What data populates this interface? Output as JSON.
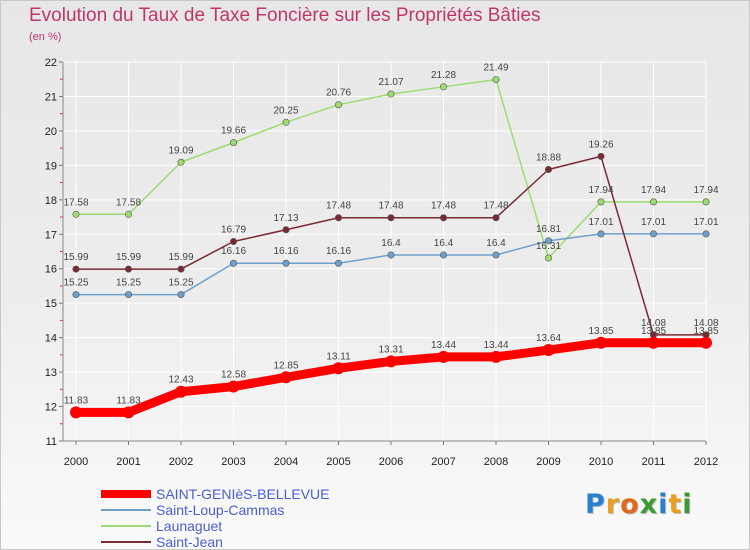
{
  "chart_data": {
    "type": "line",
    "title": "Evolution du Taux de Taxe Foncière sur les Propriétés Bâties",
    "subtitle": "(en %)",
    "x": [
      "2000",
      "2001",
      "2002",
      "2003",
      "2004",
      "2005",
      "2006",
      "2007",
      "2008",
      "2009",
      "2010",
      "2011",
      "2012"
    ],
    "ylim": [
      11,
      22
    ],
    "yticks": [
      "11",
      "12",
      "13",
      "14",
      "15",
      "16",
      "17",
      "18",
      "19",
      "20",
      "21",
      "22"
    ],
    "grid": true,
    "legend_position": "bottom-left",
    "series": [
      {
        "name": "SAINT-GENIèS-BELLEVUE",
        "color": "#ff0000",
        "values": [
          11.83,
          11.83,
          12.43,
          12.58,
          12.85,
          13.11,
          13.31,
          13.44,
          13.44,
          13.64,
          13.85,
          13.85,
          13.85
        ],
        "labels": [
          "11.83",
          "11.83",
          "12.43",
          "12.58",
          "12.85",
          "13.11",
          "13.31",
          "13.44",
          "13.44",
          "13.64",
          "13.85",
          "13.85",
          "13.85"
        ]
      },
      {
        "name": "Saint-Loup-Cammas",
        "color": "#6ea0cc",
        "values": [
          15.25,
          15.25,
          15.25,
          16.16,
          16.16,
          16.16,
          16.4,
          16.4,
          16.4,
          16.81,
          17.01,
          17.01,
          17.01
        ],
        "labels": [
          "15.25",
          "15.25",
          "15.25",
          "16.16",
          "16.16",
          "16.16",
          "16.4",
          "16.4",
          "16.4",
          "16.81",
          "17.01",
          "17.01",
          "17.01"
        ]
      },
      {
        "name": "Launaguet",
        "color": "#9edb70",
        "values": [
          17.58,
          17.58,
          19.09,
          19.66,
          20.25,
          20.76,
          21.07,
          21.28,
          21.49,
          16.31,
          17.94,
          17.94,
          17.94
        ],
        "labels": [
          "17.58",
          "17.58",
          "19.09",
          "19.66",
          "20.25",
          "20.76",
          "21.07",
          "21.28",
          "21.49",
          "16.31",
          "17.94",
          "17.94",
          "17.94"
        ]
      },
      {
        "name": "Saint-Jean",
        "color": "#7a2a33",
        "values": [
          15.99,
          15.99,
          15.99,
          16.79,
          17.13,
          17.48,
          17.48,
          17.48,
          17.48,
          18.88,
          19.26,
          14.08,
          14.08
        ],
        "labels": [
          "15.99",
          "15.99",
          "15.99",
          "16.79",
          "17.13",
          "17.48",
          "17.48",
          "17.48",
          "17.48",
          "18.88",
          "19.26",
          "14.08",
          "14.08"
        ]
      }
    ]
  },
  "brand": {
    "letters": [
      "P",
      "r",
      "o",
      "x",
      "i",
      "t",
      "i"
    ],
    "colors": [
      "#2a7fd4",
      "#e8a020",
      "#e06a1a",
      "#3a9a30",
      "#2a7fd4",
      "#e8a020",
      "#3a9a30"
    ]
  }
}
